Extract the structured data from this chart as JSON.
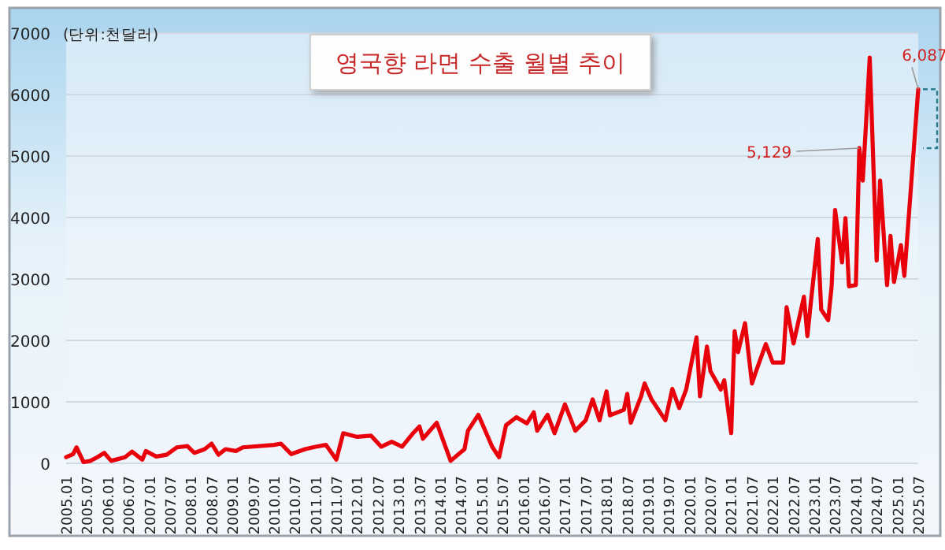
{
  "chart_data": {
    "type": "line",
    "title": "영국향 라면 수출 월별 추이",
    "annotations": [
      "(단위:천달러)",
      {
        "text": "5,129",
        "x": "2024-02",
        "y": 5129
      },
      {
        "text": "6,087",
        "x": "2025-07",
        "y": 6087
      }
    ],
    "series": [
      {
        "color": "#e8000b",
        "x": [
          "2005-01",
          "2005-03",
          "2005-04",
          "2005-06",
          "2005-08",
          "2005-10",
          "2005-12",
          "2006-02",
          "2006-06",
          "2006-08",
          "2006-11",
          "2006-12",
          "2007-03",
          "2007-06",
          "2007-09",
          "2007-12",
          "2008-02",
          "2008-05",
          "2008-07",
          "2008-09",
          "2008-11",
          "2009-02",
          "2009-04",
          "2010-01",
          "2010-03",
          "2010-06",
          "2010-10",
          "2011-01",
          "2011-04",
          "2011-07",
          "2011-09",
          "2012-01",
          "2012-05",
          "2012-08",
          "2012-11",
          "2013-02",
          "2013-05",
          "2013-07",
          "2013-08",
          "2013-12",
          "2014-04",
          "2014-08",
          "2014-09",
          "2014-12",
          "2015-04",
          "2015-06",
          "2015-08",
          "2015-11",
          "2016-02",
          "2016-04",
          "2016-05",
          "2016-08",
          "2016-10",
          "2017-01",
          "2017-04",
          "2017-07",
          "2017-09",
          "2017-11",
          "2018-01",
          "2018-02",
          "2018-06",
          "2018-07",
          "2018-08",
          "2018-11",
          "2018-12",
          "2019-02",
          "2019-06",
          "2019-08",
          "2019-10",
          "2019-12",
          "2020-03",
          "2020-04",
          "2020-06",
          "2020-07",
          "2020-10",
          "2020-11",
          "2021-01",
          "2021-02",
          "2021-03",
          "2021-05",
          "2021-07",
          "2021-08",
          "2021-11",
          "2022-01",
          "2022-04",
          "2022-05",
          "2022-07",
          "2022-10",
          "2022-11",
          "2022-12",
          "2023-02",
          "2023-03",
          "2023-05",
          "2023-06",
          "2023-07",
          "2023-09",
          "2023-10",
          "2023-11",
          "2024-01",
          "2024-02",
          "2024-03",
          "2024-05",
          "2024-07",
          "2024-08",
          "2024-10",
          "2024-11",
          "2024-12",
          "2025-02",
          "2025-03",
          "2025-07"
        ],
        "values": [
          100,
          150,
          260,
          20,
          40,
          100,
          170,
          40,
          100,
          190,
          60,
          200,
          110,
          140,
          260,
          280,
          170,
          230,
          320,
          140,
          230,
          200,
          260,
          300,
          320,
          150,
          230,
          270,
          300,
          60,
          490,
          430,
          450,
          270,
          350,
          270,
          480,
          600,
          400,
          660,
          40,
          230,
          530,
          790,
          270,
          100,
          620,
          750,
          650,
          830,
          530,
          790,
          490,
          960,
          530,
          700,
          1040,
          700,
          1170,
          780,
          870,
          1130,
          660,
          1090,
          1300,
          1040,
          700,
          1210,
          900,
          1200,
          2050,
          1090,
          1900,
          1500,
          1200,
          1350,
          490,
          2150,
          1810,
          2280,
          1300,
          1470,
          1940,
          1640,
          1640,
          2540,
          1950,
          2710,
          2070,
          2620,
          3650,
          2500,
          2330,
          2880,
          4120,
          3270,
          3990,
          2880,
          2900,
          5129,
          4600,
          6600,
          3300,
          4600,
          2900,
          3700,
          2950,
          3550,
          3050,
          6087
        ]
      }
    ],
    "xlim": [
      "2005-01",
      "2025-07"
    ],
    "xticks": [
      {
        "value": "2005-01",
        "label": "2005.01"
      },
      {
        "value": "2005-07",
        "label": "2005.07"
      },
      {
        "value": "2006-01",
        "label": "2006.01"
      },
      {
        "value": "2006-07",
        "label": "2006.07"
      },
      {
        "value": "2007-01",
        "label": "2007.01"
      },
      {
        "value": "2007-07",
        "label": "2007.07"
      },
      {
        "value": "2008-01",
        "label": "2008.01"
      },
      {
        "value": "2008-07",
        "label": "2008.07"
      },
      {
        "value": "2009-01",
        "label": "2009.01"
      },
      {
        "value": "2009-07",
        "label": "2009.07"
      },
      {
        "value": "2010-01",
        "label": "2010.01"
      },
      {
        "value": "2010-07",
        "label": "2010.07"
      },
      {
        "value": "2011-01",
        "label": "2011.01"
      },
      {
        "value": "2011-07",
        "label": "2011.07"
      },
      {
        "value": "2012-01",
        "label": "2012.01"
      },
      {
        "value": "2012-07",
        "label": "2012.07"
      },
      {
        "value": "2013-01",
        "label": "2013.01"
      },
      {
        "value": "2013-07",
        "label": "2013.07"
      },
      {
        "value": "2014-01",
        "label": "2014.01"
      },
      {
        "value": "2014-07",
        "label": "2014.07"
      },
      {
        "value": "2015-01",
        "label": "2015.01"
      },
      {
        "value": "2015-07",
        "label": "2015.07"
      },
      {
        "value": "2016-01",
        "label": "2016.01"
      },
      {
        "value": "2016-07",
        "label": "2016.07"
      },
      {
        "value": "2017-01",
        "label": "2017.01"
      },
      {
        "value": "2017-07",
        "label": "2017.07"
      },
      {
        "value": "2018-01",
        "label": "2018.01"
      },
      {
        "value": "2018-07",
        "label": "2018.07"
      },
      {
        "value": "2019-01",
        "label": "2019.01"
      },
      {
        "value": "2019-07",
        "label": "2019.07"
      },
      {
        "value": "2020-01",
        "label": "2020.01"
      },
      {
        "value": "2020-07",
        "label": "2020.07"
      },
      {
        "value": "2021-01",
        "label": "2021.01"
      },
      {
        "value": "2021-07",
        "label": "2021.07"
      },
      {
        "value": "2022-01",
        "label": "2022.01"
      },
      {
        "value": "2022-07",
        "label": "2022.07"
      },
      {
        "value": "2023-01",
        "label": "2023.01"
      },
      {
        "value": "2023-07",
        "label": "2023.07"
      },
      {
        "value": "2024-01",
        "label": "2024.01"
      },
      {
        "value": "2024-07",
        "label": "2024.07"
      },
      {
        "value": "2025-01",
        "label": "2025.01"
      },
      {
        "value": "2025-07",
        "label": "2025.07"
      }
    ],
    "ylim": [
      0,
      7000
    ],
    "yticks": [
      0,
      1000,
      2000,
      3000,
      4000,
      5000,
      6000,
      7000
    ],
    "grid": "y",
    "marker": "none",
    "line_style": "solid"
  }
}
